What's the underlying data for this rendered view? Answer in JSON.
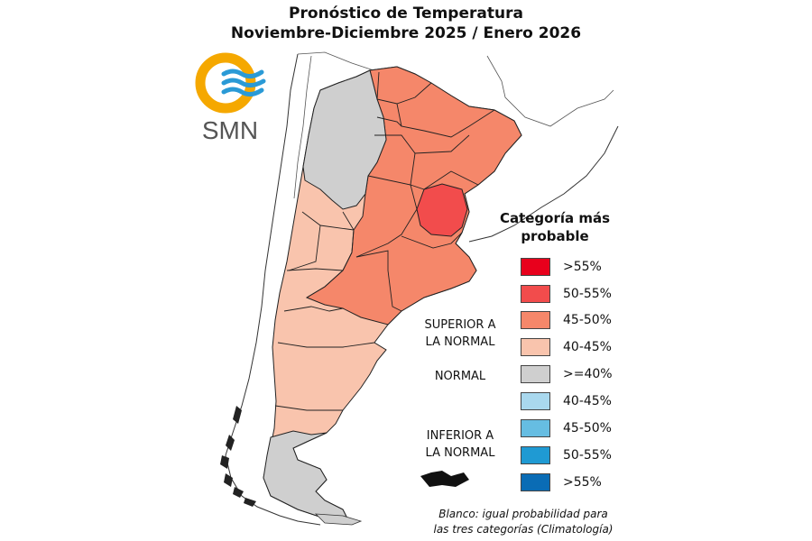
{
  "title": {
    "line1": "Pronóstico de Temperatura",
    "line2": "Noviembre-Diciembre 2025 / Enero 2026"
  },
  "logo": {
    "text": "SMN",
    "colors": {
      "sun": "#f5a800",
      "waves": "#2a9ad6",
      "text": "#555555"
    }
  },
  "legend": {
    "title_line1": "Categoría más",
    "title_line2": "probable",
    "items": [
      {
        "label": ">55%",
        "color": "#e8001c"
      },
      {
        "label": "50-55%",
        "color": "#f24c4c"
      },
      {
        "label": "45-50%",
        "color": "#f5876a"
      },
      {
        "label": "40-45%",
        "color": "#f9c4ad"
      },
      {
        "label": ">=40%",
        "color": "#cfcfcf"
      },
      {
        "label": "40-45%",
        "color": "#a9d8ee"
      },
      {
        "label": "45-50%",
        "color": "#66bde2"
      },
      {
        "label": "50-55%",
        "color": "#1f9ad3"
      },
      {
        "label": ">55%",
        "color": "#0a6cb5"
      }
    ],
    "groups": {
      "superior_line1": "SUPERIOR A",
      "superior_line2": "LA NORMAL",
      "normal": "NORMAL",
      "inferior_line1": "INFERIOR A",
      "inferior_line2": "LA NORMAL"
    }
  },
  "footnote": {
    "line1": "Blanco: igual probabilidad para",
    "line2": "las tres categorías (Climatología)"
  },
  "map_colors": {
    "gt55": "#e8001c",
    "p50_55": "#f24c4c",
    "p45_50": "#f5876a",
    "p40_45": "#f9c4ad",
    "normal": "#cfcfcf",
    "border": "#222222"
  }
}
